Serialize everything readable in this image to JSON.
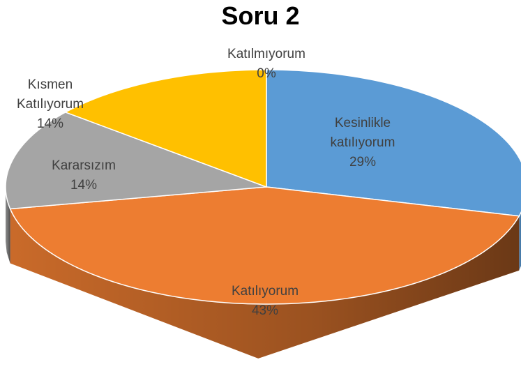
{
  "chart_data": {
    "type": "pie3d",
    "title": "Soru 2",
    "categories": [
      "Kesinlikle katılıyorum",
      "Katılıyorum",
      "Kararsızım",
      "Kısmen Katılıyorum",
      "Katılmıyorum"
    ],
    "values": [
      29,
      43,
      14,
      14,
      0
    ],
    "value_labels": [
      "29%",
      "43%",
      "14%",
      "14%",
      "0%"
    ],
    "colors": [
      "#5b9bd5",
      "#ed7d31",
      "#a5a5a5",
      "#ffc000",
      "#4472c4"
    ]
  }
}
